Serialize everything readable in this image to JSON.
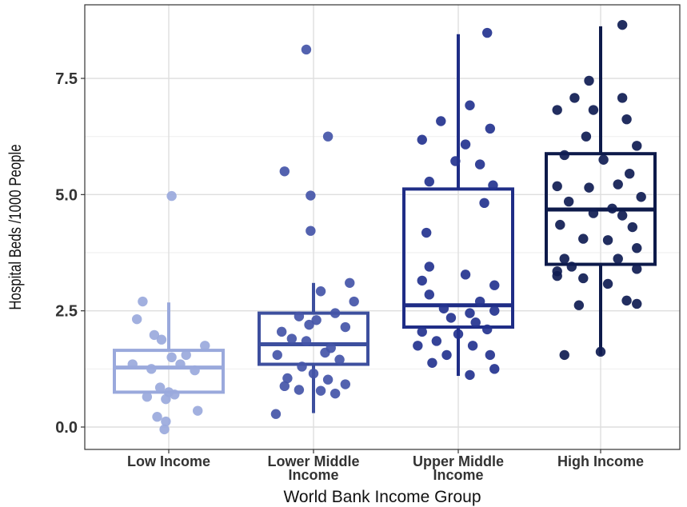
{
  "chart_data": {
    "type": "boxplot",
    "title": "",
    "xlabel": "World Bank Income Group",
    "ylabel": "Hospital Beds /1000 People",
    "ylim": [
      -0.15,
      8.75
    ],
    "y_ticks": [
      "0.0",
      "2.5",
      "5.0",
      "7.5"
    ],
    "grid": true,
    "categories": [
      {
        "name": "Low Income",
        "label_lines": [
          "Low Income"
        ],
        "color": "#9aa9dc",
        "point_color": "#9aa9dc",
        "box": {
          "whisker_low": 0.75,
          "q1": 0.75,
          "median": 1.28,
          "q3": 1.65,
          "whisker_high": 2.68
        },
        "points": [
          {
            "x": -0.18,
            "y": 2.7
          },
          {
            "x": -0.22,
            "y": 2.32
          },
          {
            "x": -0.1,
            "y": 1.98
          },
          {
            "x": -0.05,
            "y": 1.88
          },
          {
            "x": 0.12,
            "y": 1.55
          },
          {
            "x": 0.02,
            "y": 1.5
          },
          {
            "x": 0.25,
            "y": 1.75
          },
          {
            "x": -0.25,
            "y": 1.35
          },
          {
            "x": -0.12,
            "y": 1.25
          },
          {
            "x": 0.18,
            "y": 1.22
          },
          {
            "x": 0.08,
            "y": 1.35
          },
          {
            "x": -0.06,
            "y": 0.85
          },
          {
            "x": 0.0,
            "y": 0.75
          },
          {
            "x": -0.15,
            "y": 0.65
          },
          {
            "x": -0.02,
            "y": 0.6
          },
          {
            "x": 0.04,
            "y": 0.7
          },
          {
            "x": -0.08,
            "y": 0.22
          },
          {
            "x": -0.02,
            "y": 0.12
          },
          {
            "x": 0.2,
            "y": 0.35
          },
          {
            "x": -0.03,
            "y": -0.05
          },
          {
            "x": 0.02,
            "y": 4.97
          }
        ]
      },
      {
        "name": "Lower Middle Income",
        "label_lines": [
          "Lower Middle",
          "Income"
        ],
        "color": "#3d4f9e",
        "point_color": "#4455a8",
        "box": {
          "whisker_low": 0.3,
          "q1": 1.35,
          "median": 1.78,
          "q3": 2.45,
          "whisker_high": 3.1
        },
        "points": [
          {
            "x": -0.05,
            "y": 8.12
          },
          {
            "x": 0.1,
            "y": 6.25
          },
          {
            "x": -0.2,
            "y": 5.5
          },
          {
            "x": -0.02,
            "y": 4.98
          },
          {
            "x": -0.02,
            "y": 4.22
          },
          {
            "x": 0.25,
            "y": 3.1
          },
          {
            "x": 0.05,
            "y": 2.92
          },
          {
            "x": 0.28,
            "y": 2.7
          },
          {
            "x": 0.15,
            "y": 2.45
          },
          {
            "x": -0.1,
            "y": 2.38
          },
          {
            "x": 0.02,
            "y": 2.3
          },
          {
            "x": 0.22,
            "y": 2.15
          },
          {
            "x": -0.22,
            "y": 2.05
          },
          {
            "x": -0.15,
            "y": 1.9
          },
          {
            "x": -0.05,
            "y": 1.85
          },
          {
            "x": 0.12,
            "y": 1.7
          },
          {
            "x": -0.25,
            "y": 1.55
          },
          {
            "x": 0.18,
            "y": 1.45
          },
          {
            "x": -0.08,
            "y": 1.3
          },
          {
            "x": 0.0,
            "y": 1.15
          },
          {
            "x": -0.18,
            "y": 1.05
          },
          {
            "x": 0.1,
            "y": 1.02
          },
          {
            "x": 0.22,
            "y": 0.92
          },
          {
            "x": -0.2,
            "y": 0.88
          },
          {
            "x": -0.1,
            "y": 0.8
          },
          {
            "x": 0.05,
            "y": 0.78
          },
          {
            "x": 0.15,
            "y": 0.72
          },
          {
            "x": -0.26,
            "y": 0.28
          },
          {
            "x": -0.03,
            "y": 2.2
          },
          {
            "x": 0.08,
            "y": 1.6
          }
        ]
      },
      {
        "name": "Upper Middle Income",
        "label_lines": [
          "Upper Middle",
          "Income"
        ],
        "color": "#1f2d86",
        "point_color": "#24338f",
        "box": {
          "whisker_low": 1.1,
          "q1": 2.15,
          "median": 2.62,
          "q3": 5.12,
          "whisker_high": 8.45
        },
        "points": [
          {
            "x": 0.2,
            "y": 8.48
          },
          {
            "x": 0.08,
            "y": 6.92
          },
          {
            "x": -0.12,
            "y": 6.58
          },
          {
            "x": 0.22,
            "y": 6.42
          },
          {
            "x": -0.25,
            "y": 6.18
          },
          {
            "x": 0.05,
            "y": 6.08
          },
          {
            "x": -0.02,
            "y": 5.72
          },
          {
            "x": 0.15,
            "y": 5.65
          },
          {
            "x": -0.2,
            "y": 5.28
          },
          {
            "x": 0.24,
            "y": 5.2
          },
          {
            "x": 0.18,
            "y": 4.82
          },
          {
            "x": -0.22,
            "y": 4.18
          },
          {
            "x": -0.2,
            "y": 3.45
          },
          {
            "x": 0.05,
            "y": 3.28
          },
          {
            "x": -0.25,
            "y": 3.15
          },
          {
            "x": 0.25,
            "y": 3.05
          },
          {
            "x": -0.2,
            "y": 2.85
          },
          {
            "x": 0.15,
            "y": 2.7
          },
          {
            "x": -0.1,
            "y": 2.55
          },
          {
            "x": 0.08,
            "y": 2.45
          },
          {
            "x": 0.25,
            "y": 2.5
          },
          {
            "x": -0.25,
            "y": 2.05
          },
          {
            "x": 0.0,
            "y": 2.0
          },
          {
            "x": 0.2,
            "y": 2.1
          },
          {
            "x": -0.15,
            "y": 1.85
          },
          {
            "x": 0.1,
            "y": 1.75
          },
          {
            "x": -0.28,
            "y": 1.75
          },
          {
            "x": -0.08,
            "y": 1.55
          },
          {
            "x": 0.22,
            "y": 1.55
          },
          {
            "x": -0.18,
            "y": 1.38
          },
          {
            "x": 0.25,
            "y": 1.25
          },
          {
            "x": 0.08,
            "y": 1.12
          },
          {
            "x": -0.05,
            "y": 2.35
          },
          {
            "x": 0.12,
            "y": 2.25
          }
        ]
      },
      {
        "name": "High Income",
        "label_lines": [
          "High Income"
        ],
        "color": "#0d1a4a",
        "point_color": "#0f1c52",
        "box": {
          "whisker_low": 1.55,
          "q1": 3.5,
          "median": 4.68,
          "q3": 5.88,
          "whisker_high": 8.62
        },
        "points": [
          {
            "x": 0.15,
            "y": 8.65
          },
          {
            "x": -0.08,
            "y": 7.45
          },
          {
            "x": -0.18,
            "y": 7.08
          },
          {
            "x": 0.15,
            "y": 7.08
          },
          {
            "x": -0.3,
            "y": 6.82
          },
          {
            "x": -0.05,
            "y": 6.82
          },
          {
            "x": 0.18,
            "y": 6.62
          },
          {
            "x": -0.1,
            "y": 6.25
          },
          {
            "x": 0.25,
            "y": 6.05
          },
          {
            "x": -0.25,
            "y": 5.85
          },
          {
            "x": 0.02,
            "y": 5.75
          },
          {
            "x": 0.2,
            "y": 5.45
          },
          {
            "x": -0.3,
            "y": 5.18
          },
          {
            "x": -0.08,
            "y": 5.15
          },
          {
            "x": 0.12,
            "y": 5.22
          },
          {
            "x": 0.28,
            "y": 4.95
          },
          {
            "x": -0.22,
            "y": 4.85
          },
          {
            "x": -0.05,
            "y": 4.6
          },
          {
            "x": 0.15,
            "y": 4.55
          },
          {
            "x": -0.28,
            "y": 4.35
          },
          {
            "x": 0.22,
            "y": 4.3
          },
          {
            "x": -0.12,
            "y": 4.05
          },
          {
            "x": 0.05,
            "y": 4.02
          },
          {
            "x": 0.25,
            "y": 3.85
          },
          {
            "x": -0.25,
            "y": 3.62
          },
          {
            "x": 0.12,
            "y": 3.62
          },
          {
            "x": -0.2,
            "y": 3.45
          },
          {
            "x": 0.25,
            "y": 3.4
          },
          {
            "x": -0.3,
            "y": 3.25
          },
          {
            "x": -0.12,
            "y": 3.2
          },
          {
            "x": 0.05,
            "y": 3.08
          },
          {
            "x": -0.15,
            "y": 2.62
          },
          {
            "x": 0.18,
            "y": 2.72
          },
          {
            "x": 0.25,
            "y": 2.65
          },
          {
            "x": -0.25,
            "y": 1.55
          },
          {
            "x": 0.0,
            "y": 1.62
          },
          {
            "x": -0.3,
            "y": 3.35
          },
          {
            "x": 0.08,
            "y": 4.7
          }
        ]
      }
    ]
  }
}
